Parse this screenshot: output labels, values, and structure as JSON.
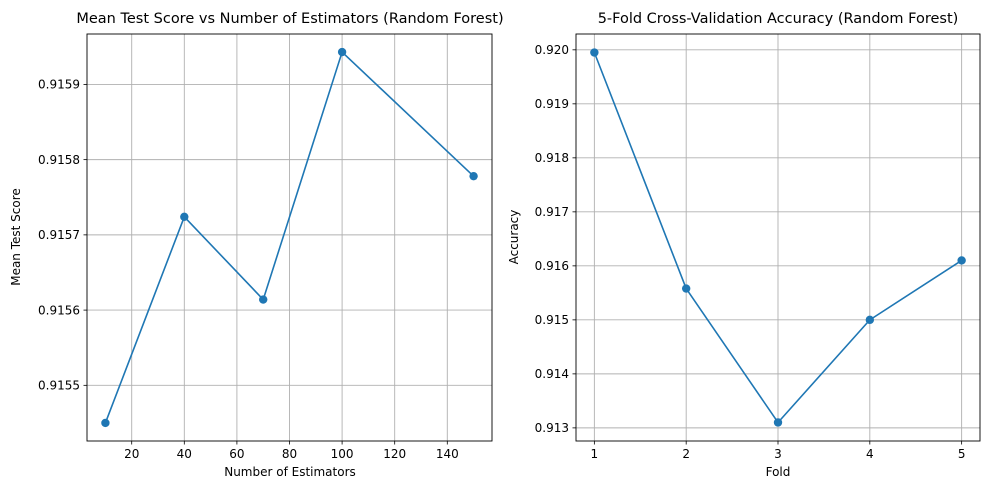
{
  "line_color": "#1f77b4",
  "chart_data": [
    {
      "type": "line",
      "title": "Mean Test Score vs Number of Estimators (Random Forest)",
      "xlabel": "Number of Estimators",
      "ylabel": "Mean Test Score",
      "x": [
        10,
        40,
        70,
        100,
        150
      ],
      "y": [
        0.91545,
        0.915724,
        0.915614,
        0.915943,
        0.915778
      ],
      "xticks": [
        20,
        40,
        60,
        80,
        100,
        120,
        140
      ],
      "yticks": [
        0.9155,
        0.9156,
        0.9157,
        0.9158,
        0.9159
      ],
      "xlim": [
        3,
        157
      ],
      "ylim": [
        0.915426,
        0.915967
      ],
      "grid": true,
      "marker": "circle"
    },
    {
      "type": "line",
      "title": "5-Fold Cross-Validation Accuracy (Random Forest)",
      "xlabel": "Fold",
      "ylabel": "Accuracy",
      "x": [
        1,
        2,
        3,
        4,
        5
      ],
      "y": [
        0.91995,
        0.91558,
        0.9131,
        0.915,
        0.9161
      ],
      "xticks": [
        1,
        2,
        3,
        4,
        5
      ],
      "yticks": [
        0.913,
        0.914,
        0.915,
        0.916,
        0.917,
        0.918,
        0.919,
        0.92
      ],
      "xlim": [
        0.8,
        5.2
      ],
      "ylim": [
        0.912757,
        0.920293
      ],
      "grid": true,
      "marker": "circle"
    }
  ]
}
